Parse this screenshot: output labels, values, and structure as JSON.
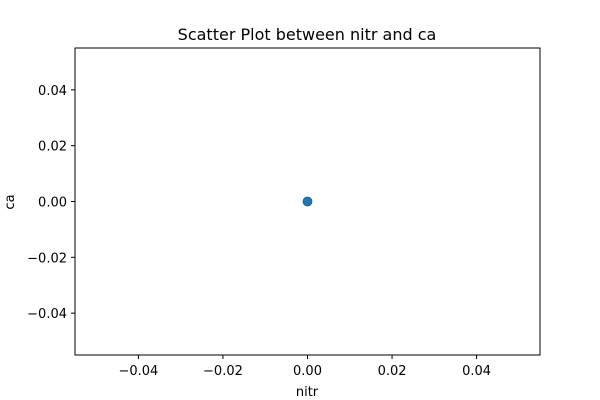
{
  "chart_data": {
    "type": "scatter",
    "title": "Scatter Plot between nitr and ca",
    "xlabel": "nitr",
    "ylabel": "ca",
    "xlim": [
      -0.055,
      0.055
    ],
    "ylim": [
      -0.055,
      0.055
    ],
    "x_ticks": [
      -0.04,
      -0.02,
      0.0,
      0.02,
      0.04
    ],
    "y_ticks": [
      -0.04,
      -0.02,
      0.0,
      0.02,
      0.04
    ],
    "x_tick_labels": [
      "−0.04",
      "−0.02",
      "0.00",
      "0.02",
      "0.04"
    ],
    "y_tick_labels": [
      "−0.04",
      "−0.02",
      "0.00",
      "0.02",
      "0.04"
    ],
    "grid": false,
    "marker_color": "#1f77b4",
    "series": [
      {
        "x": [
          0.0
        ],
        "y": [
          0.0
        ]
      }
    ]
  }
}
